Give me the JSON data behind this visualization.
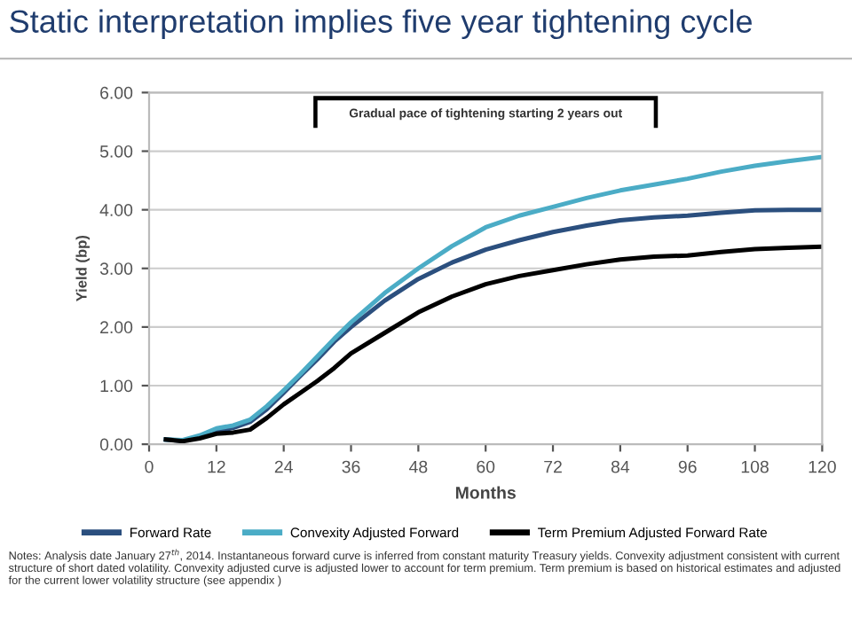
{
  "chart_data": {
    "type": "line",
    "title": "Static interpretation implies five year tightening cycle",
    "xlabel": "Months",
    "ylabel": "Yield (bp)",
    "x": [
      3,
      6,
      9,
      12,
      15,
      18,
      21,
      24,
      27,
      30,
      33,
      36,
      42,
      48,
      54,
      60,
      66,
      72,
      78,
      84,
      90,
      96,
      102,
      108,
      114,
      120
    ],
    "series": [
      {
        "name": "Forward Rate",
        "color": "#2b4f7e",
        "values": [
          0.08,
          0.06,
          0.12,
          0.22,
          0.28,
          0.38,
          0.6,
          0.88,
          1.17,
          1.45,
          1.75,
          2.0,
          2.45,
          2.82,
          3.1,
          3.32,
          3.48,
          3.62,
          3.73,
          3.82,
          3.87,
          3.9,
          3.95,
          3.99,
          4.0,
          4.0
        ]
      },
      {
        "name": "Convexity Adjusted Forward",
        "color": "#4bacc6",
        "values": [
          0.08,
          0.07,
          0.15,
          0.27,
          0.32,
          0.42,
          0.65,
          0.92,
          1.2,
          1.5,
          1.8,
          2.08,
          2.58,
          3.0,
          3.38,
          3.7,
          3.9,
          4.05,
          4.2,
          4.33,
          4.43,
          4.53,
          4.65,
          4.75,
          4.83,
          4.9
        ]
      },
      {
        "name": "Term Premium Adjusted Forward Rate",
        "color": "#000000",
        "values": [
          0.08,
          0.05,
          0.1,
          0.18,
          0.2,
          0.25,
          0.45,
          0.68,
          0.88,
          1.08,
          1.3,
          1.55,
          1.9,
          2.25,
          2.52,
          2.73,
          2.87,
          2.97,
          3.07,
          3.15,
          3.2,
          3.22,
          3.28,
          3.33,
          3.35,
          3.37
        ]
      }
    ],
    "xlim": [
      0,
      120
    ],
    "xticks": [
      0,
      12,
      24,
      36,
      48,
      60,
      72,
      84,
      96,
      108,
      120
    ],
    "ylim": [
      0,
      6
    ],
    "yticks": [
      {
        "value": 0,
        "label": "0.00"
      },
      {
        "value": 1,
        "label": "1.00"
      },
      {
        "value": 2,
        "label": "2.00"
      },
      {
        "value": 3,
        "label": "3.00"
      },
      {
        "value": 4,
        "label": "4.00"
      },
      {
        "value": 5,
        "label": "5.00"
      },
      {
        "value": 6,
        "label": "6.00"
      }
    ],
    "grid": "y",
    "legend": "bottom",
    "line_style": "solid",
    "marker": "none",
    "annotations": [
      "Gradual pace of tightening starting 2 years out",
      "Notes: Analysis date January 27$^{th}$, 2014. Instantaneous forward curve is inferred from constant maturity Treasury yields. Convexity adjustment consistent with current structure of short dated volatility. Convexity adjusted curve is adjusted lower to account for term premium. Term premium is based on historical estimates and adjusted for the current lower volatility structure (see appendix )"
    ]
  }
}
